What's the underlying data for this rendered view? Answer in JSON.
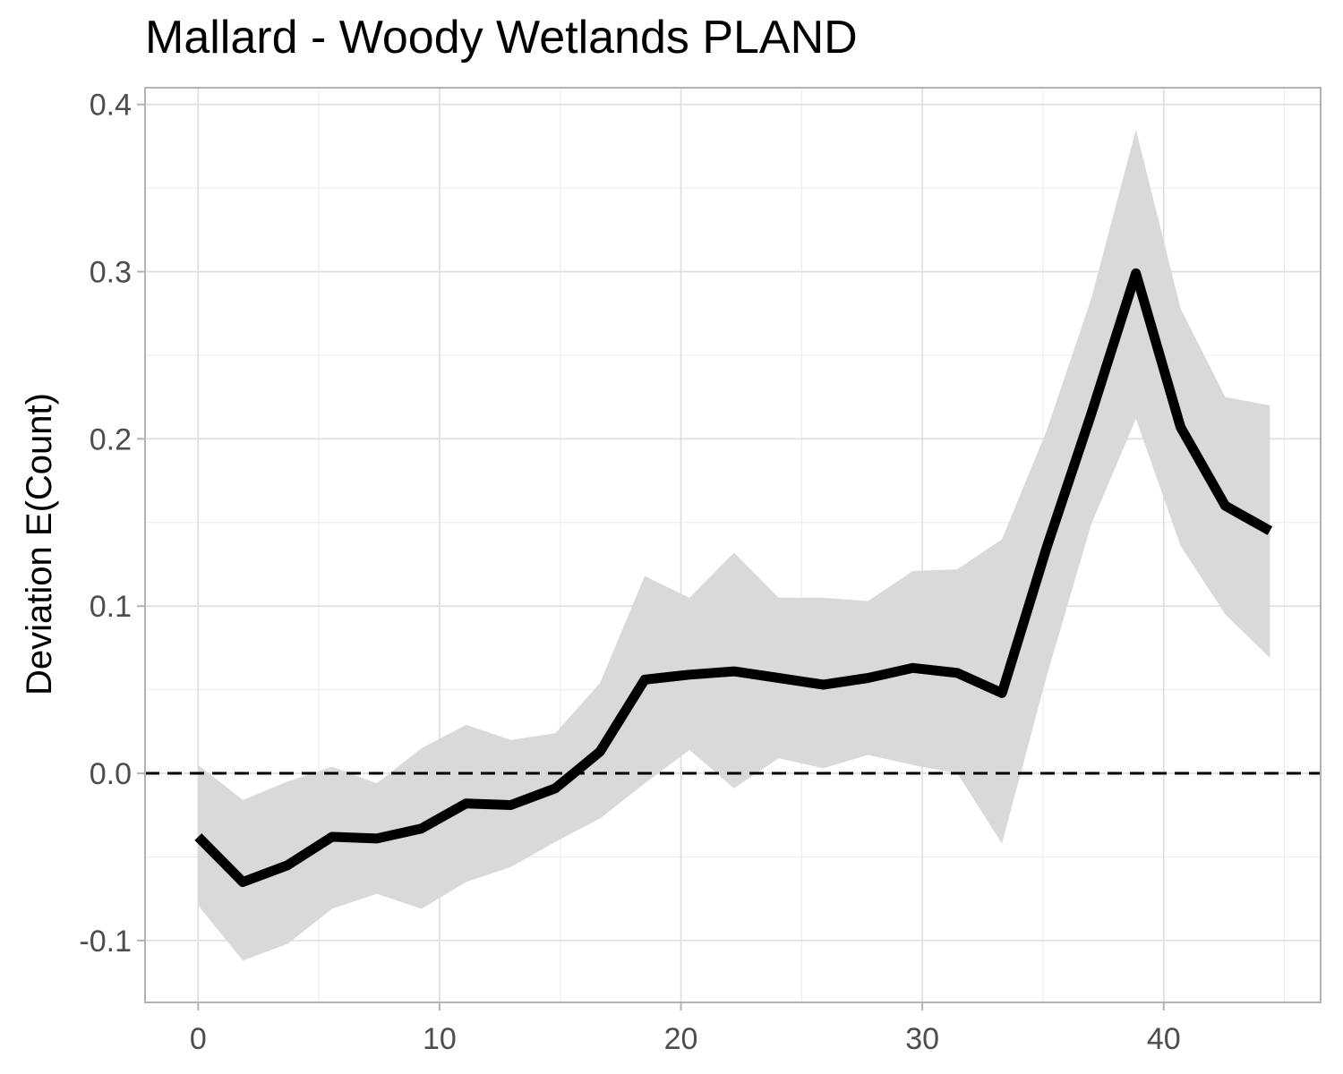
{
  "chart_data": {
    "type": "line",
    "title": "Mallard - Woody Wetlands PLAND",
    "xlabel": "",
    "ylabel": "Deviation E(Count)",
    "xlim": [
      -2.2,
      46.5
    ],
    "ylim": [
      -0.137,
      0.41
    ],
    "x_ticks": [
      0,
      10,
      20,
      30,
      40
    ],
    "x_tick_labels": [
      "0",
      "10",
      "20",
      "30",
      "40"
    ],
    "y_ticks": [
      -0.1,
      0.0,
      0.1,
      0.2,
      0.3,
      0.4
    ],
    "y_tick_labels": [
      "-0.1",
      "0.0",
      "0.1",
      "0.2",
      "0.3",
      "0.4"
    ],
    "grid": true,
    "reference_line": {
      "y": 0.0,
      "style": "dashed",
      "color": "#000000"
    },
    "series": [
      {
        "color": "#000000",
        "ribbon_color": "#d9d9d9",
        "x": [
          0.0,
          1.85,
          3.7,
          5.55,
          7.4,
          9.25,
          11.1,
          12.95,
          14.8,
          16.65,
          18.5,
          20.35,
          22.2,
          24.05,
          25.9,
          27.75,
          29.6,
          31.45,
          33.3,
          35.15,
          37.0,
          38.85,
          40.7,
          42.55,
          44.4
        ],
        "y": [
          -0.038,
          -0.065,
          -0.055,
          -0.038,
          -0.039,
          -0.033,
          -0.018,
          -0.019,
          -0.009,
          0.013,
          0.056,
          0.059,
          0.061,
          0.057,
          0.053,
          0.057,
          0.063,
          0.06,
          0.048,
          0.135,
          0.215,
          0.299,
          0.207,
          0.16,
          0.145
        ],
        "lower": [
          -0.079,
          -0.112,
          -0.102,
          -0.081,
          -0.072,
          -0.081,
          -0.065,
          -0.056,
          -0.041,
          -0.027,
          -0.006,
          0.014,
          -0.009,
          0.009,
          0.003,
          0.011,
          0.005,
          0.0,
          -0.042,
          0.058,
          0.149,
          0.212,
          0.136,
          0.095,
          0.069
        ],
        "upper": [
          0.005,
          -0.016,
          -0.005,
          0.004,
          -0.006,
          0.015,
          0.029,
          0.02,
          0.024,
          0.054,
          0.118,
          0.105,
          0.132,
          0.105,
          0.105,
          0.103,
          0.121,
          0.122,
          0.14,
          0.205,
          0.284,
          0.385,
          0.278,
          0.225,
          0.22
        ]
      }
    ]
  }
}
